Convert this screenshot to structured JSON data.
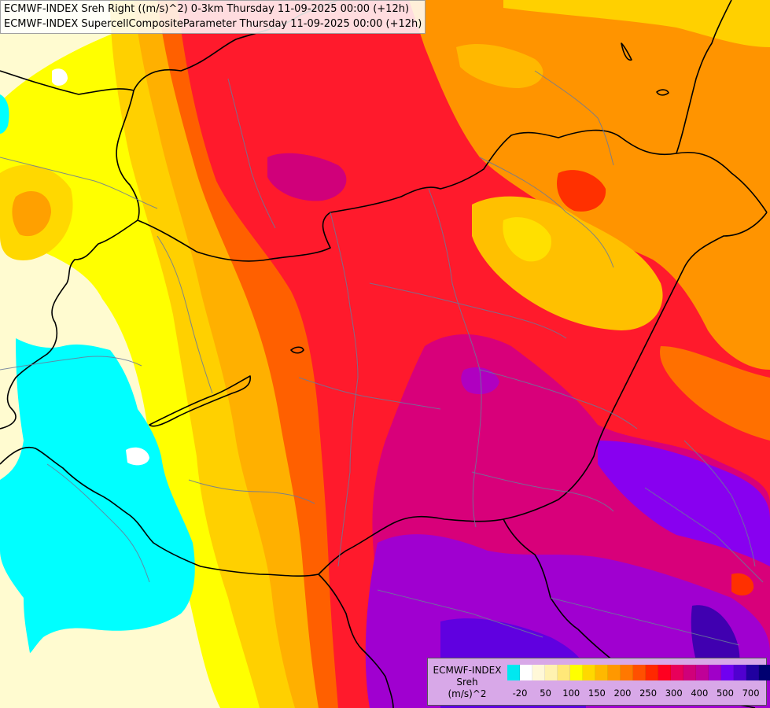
{
  "header": {
    "line1": "ECMWF-INDEX Sreh Right ((m/s)^2) 0-3km Thursday 11-09-2025 00:00 (+12h)",
    "line2": "ECMWF-INDEX SupercellCompositeParameter Thursday 11-09-2025 00:00 (+12h)"
  },
  "legend": {
    "title": [
      "ECMWF-INDEX",
      "Sreh",
      "(m/s)^2"
    ],
    "colors": [
      "#00e8f0",
      "#ffffff",
      "#fff8d8",
      "#fff2b0",
      "#ffe878",
      "#ffff00",
      "#ffd800",
      "#ffb800",
      "#ff9800",
      "#ff7800",
      "#ff5000",
      "#ff2800",
      "#ff0020",
      "#e8005a",
      "#d0007a",
      "#c00098",
      "#a000c8",
      "#7000f0",
      "#5000d0",
      "#2000a0",
      "#000070"
    ],
    "ticks": [
      "-20",
      "50",
      "100",
      "150",
      "200",
      "250",
      "300",
      "400",
      "500",
      "700"
    ]
  },
  "colors": {
    "cyan": "#00ffff",
    "pale": "#fffbd0",
    "yellow": "#ffff00",
    "orange": "#ffb000",
    "red_orange": "#ff5a00",
    "red": "#ff1a2c",
    "magenta": "#d80080",
    "purple": "#9000ff",
    "border": "#000000",
    "river": "#6a7a9a"
  }
}
